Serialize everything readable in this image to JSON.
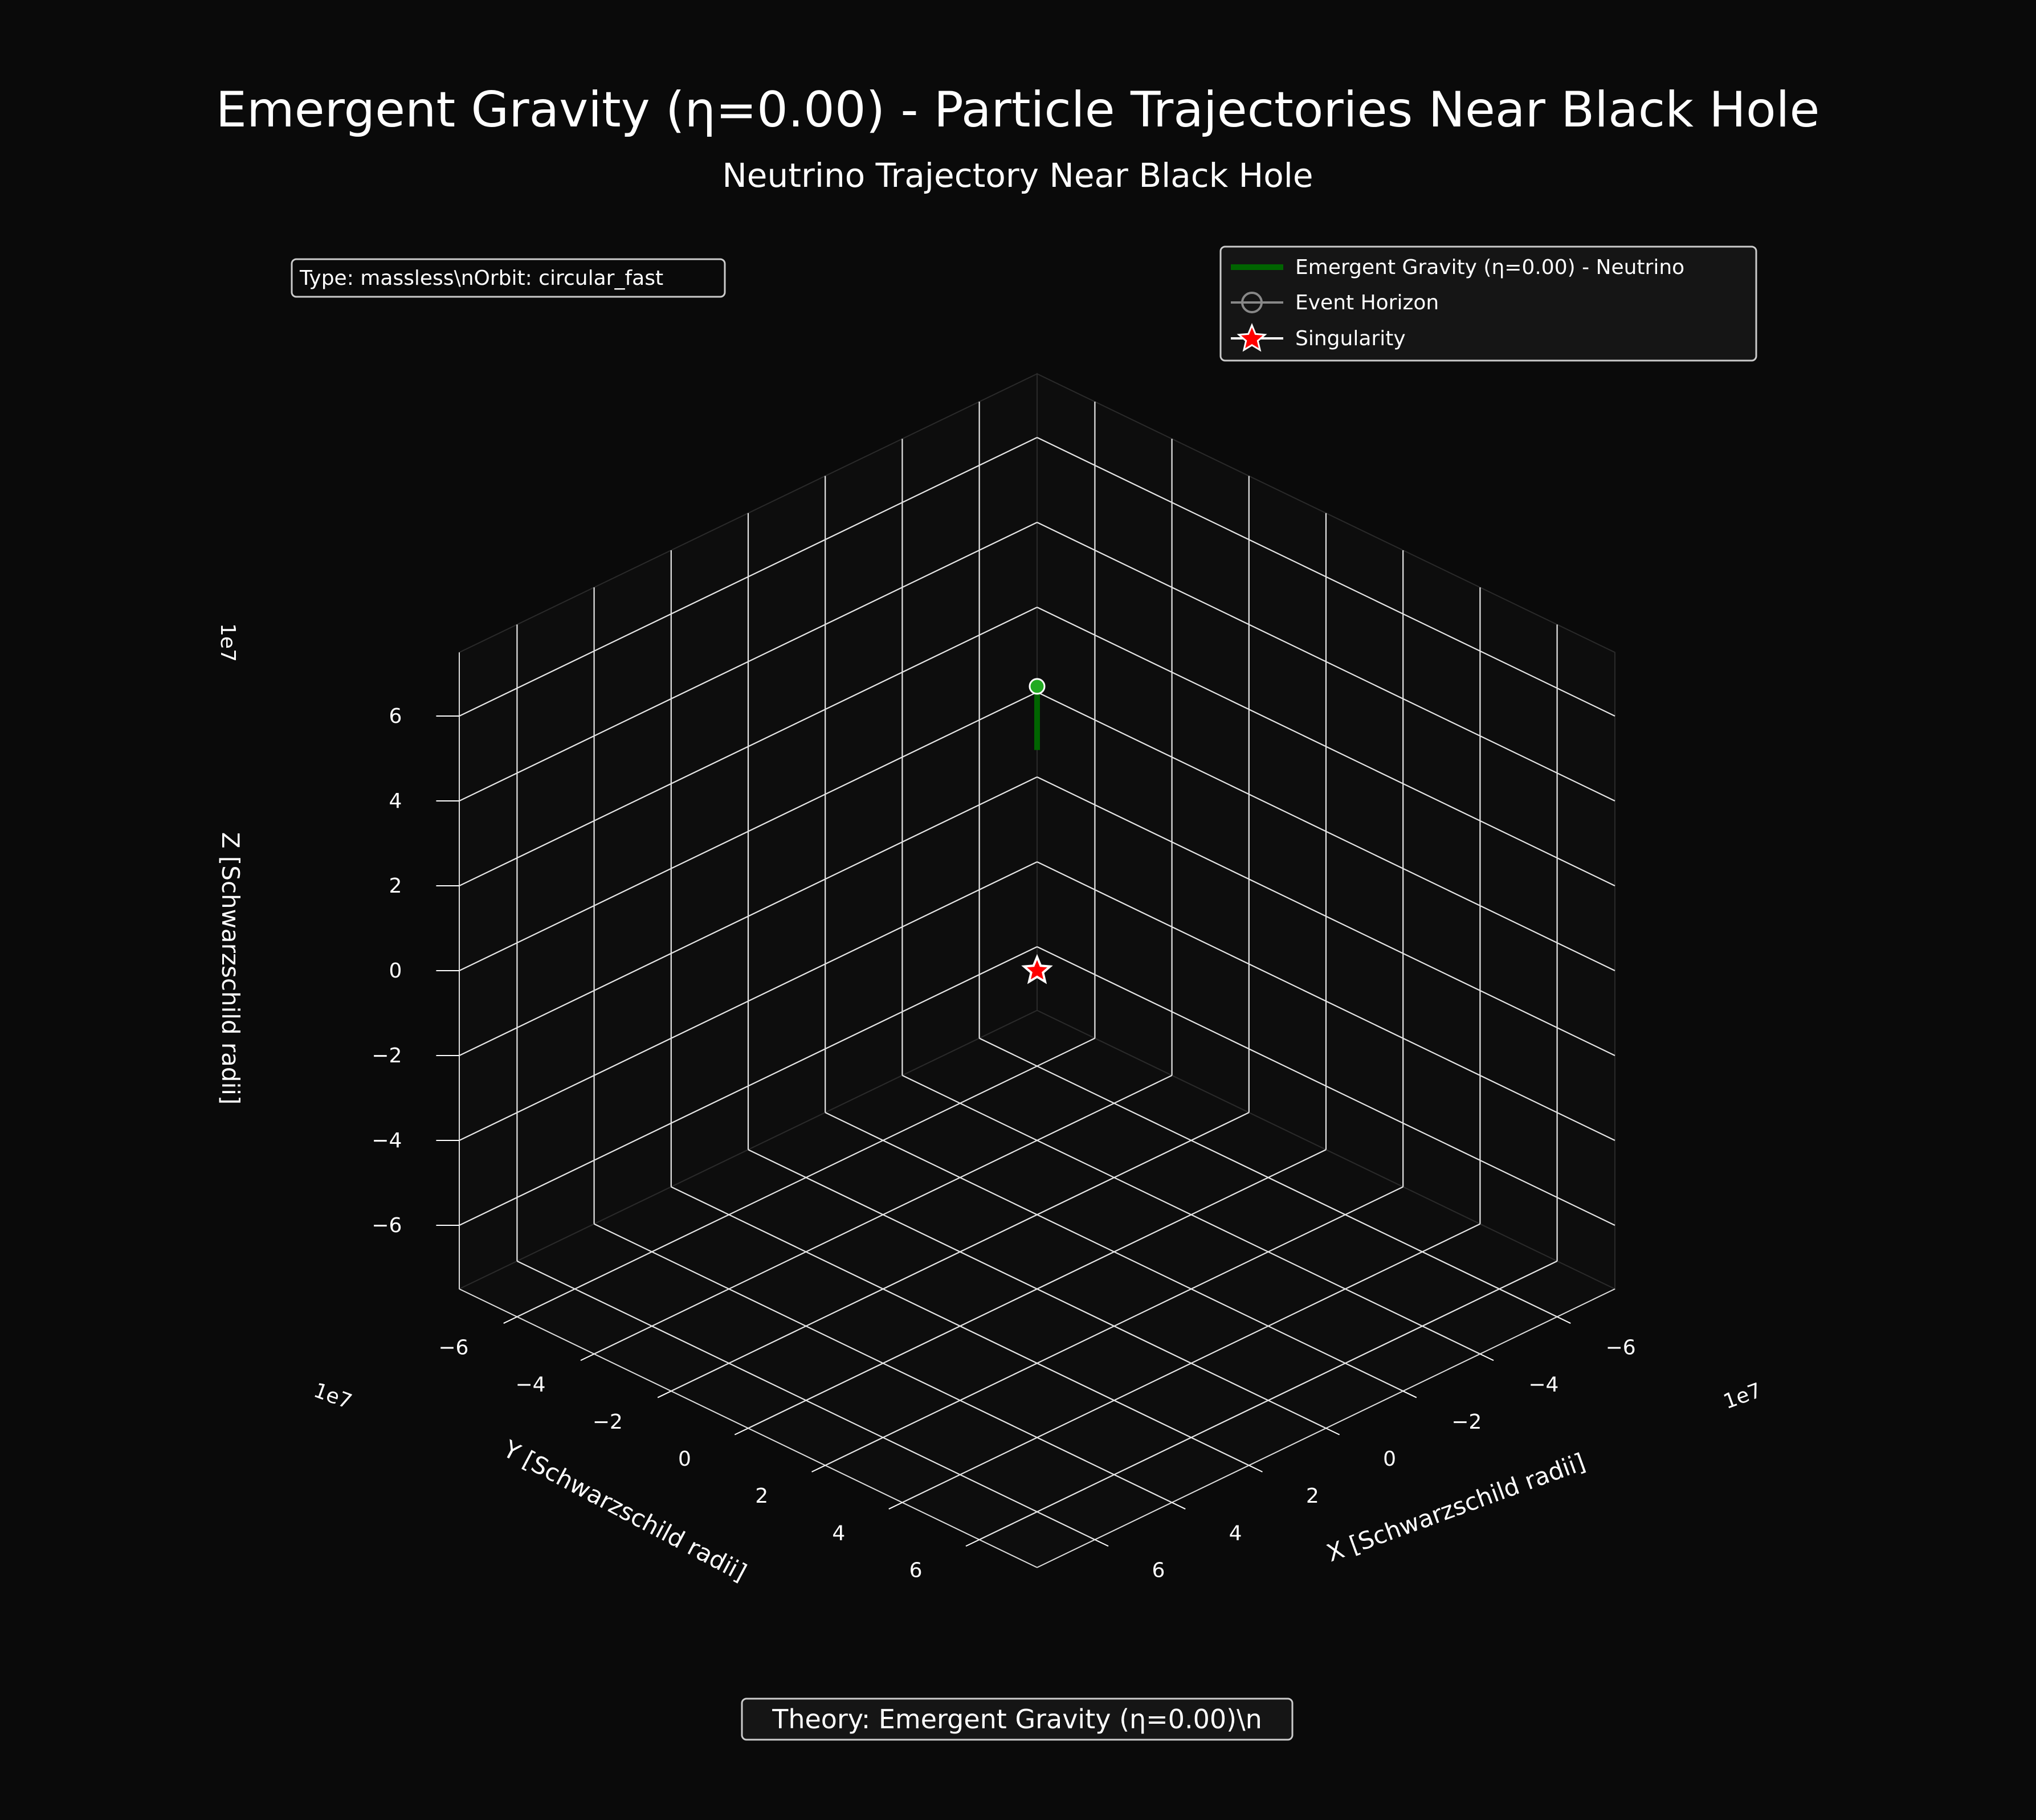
{
  "figure": {
    "title": "Emergent Gravity (η=0.00) - Particle Trajectories Near Black Hole",
    "subtitle": "Neutrino Trajectory Near Black Hole",
    "info_box": "Type: massless\\nOrbit: circular_fast",
    "footer_box": "Theory: Emergent Gravity (η=0.00)\\n"
  },
  "legend": {
    "items": [
      {
        "label": "Emergent Gravity (η=0.00) - Neutrino",
        "color": "#006400",
        "icon": "line-icon"
      },
      {
        "label": "Event Horizon",
        "color": "#888888",
        "icon": "circle-marker-icon"
      },
      {
        "label": "Singularity",
        "color": "#ff0000",
        "icon": "star-marker-icon"
      }
    ]
  },
  "chart_data": {
    "type": "line3d",
    "xlabel": "X [Schwarzschild radii]",
    "ylabel": "Y [Schwarzschild radii]",
    "zlabel": "Z [Schwarzschild radii]",
    "x_offset_label": "1e7",
    "y_offset_label": "1e7",
    "z_offset_label": "1e7",
    "xlim": [
      -7.5,
      7.5
    ],
    "ylim": [
      -7.5,
      7.5
    ],
    "zlim": [
      -7.5,
      7.5
    ],
    "xticks": [
      -6,
      -4,
      -2,
      0,
      2,
      4,
      6
    ],
    "yticks": [
      -6,
      -4,
      -2,
      0,
      2,
      4,
      6
    ],
    "zticks": [
      -6,
      -4,
      -2,
      0,
      2,
      4,
      6
    ],
    "xtick_labels": [
      "−6",
      "−4",
      "−2",
      "0",
      "2",
      "4",
      "6"
    ],
    "ytick_labels": [
      "−6",
      "−4",
      "−2",
      "0",
      "2",
      "4",
      "6"
    ],
    "ztick_labels": [
      "−6",
      "−4",
      "−2",
      "0",
      "2",
      "4",
      "6"
    ],
    "grid": true,
    "legend_position": "top-right",
    "series": [
      {
        "name": "Emergent Gravity (η=0.00) - Neutrino",
        "color": "#006400",
        "points": [
          [
            0,
            0,
            5.2
          ],
          [
            0,
            0,
            6.7
          ]
        ],
        "start_marker_color": "#22aa22"
      }
    ],
    "singularity": {
      "position": [
        0,
        0,
        0
      ],
      "color": "#ff0000"
    }
  }
}
